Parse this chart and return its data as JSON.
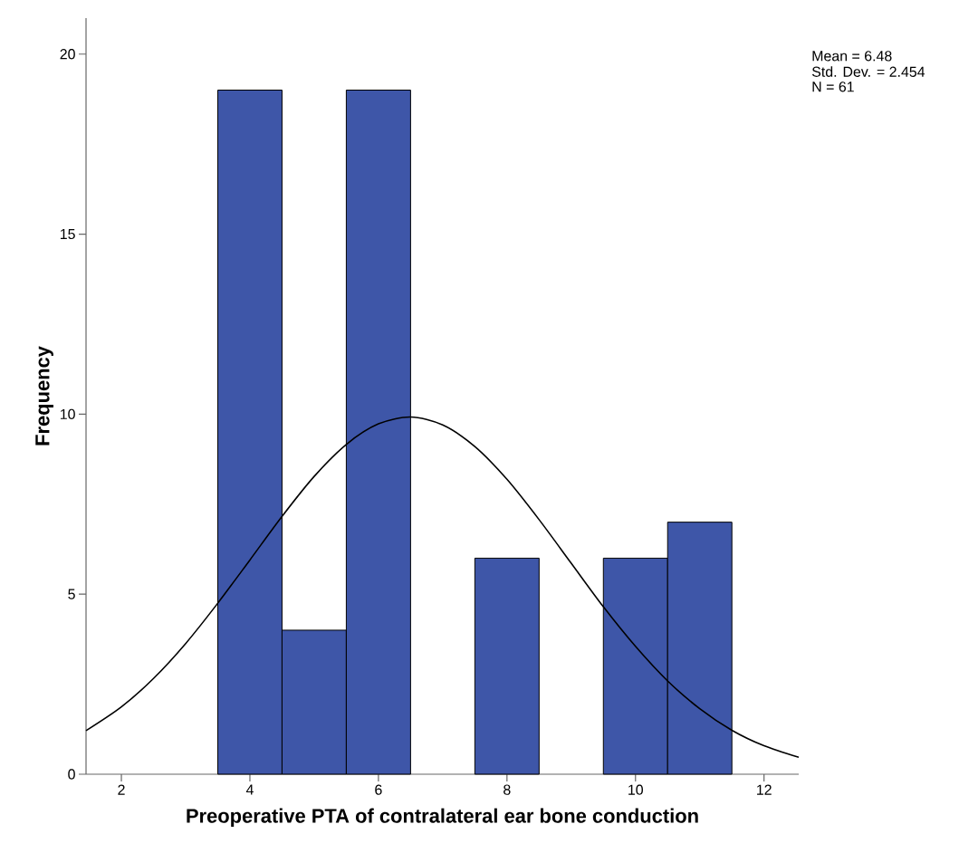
{
  "chart_data": {
    "type": "histogram",
    "xlabel": "Preoperative PTA of contralateral ear bone conduction",
    "ylabel": "Frequency",
    "bins": [
      3.5,
      4.5,
      5.5,
      6.5,
      7.5,
      8.5,
      9.5,
      10.5,
      11.5
    ],
    "values": [
      19,
      4,
      19,
      0,
      6,
      0,
      6,
      7
    ],
    "color": "#3e56a8",
    "series": [
      {
        "type": "line",
        "color": "#000000",
        "x": [
          1.45,
          2,
          2.5,
          3,
          3.5,
          4,
          4.5,
          5,
          5.5,
          6,
          6.5,
          7,
          7.5,
          8,
          8.5,
          9,
          9.5,
          10,
          10.5,
          11,
          11.5,
          12,
          12.54
        ],
        "values": [
          1.21,
          1.87,
          2.66,
          3.63,
          4.75,
          5.95,
          7.16,
          8.27,
          9.16,
          9.73,
          9.92,
          9.7,
          9.1,
          8.19,
          7.07,
          5.86,
          4.65,
          3.55,
          2.59,
          1.82,
          1.22,
          0.79,
          0.47
        ]
      }
    ],
    "xlim": [
      1.45,
      12.54
    ],
    "ylim": [
      0,
      21
    ],
    "xticks": [
      2,
      4,
      6,
      8,
      10,
      12
    ],
    "yticks": [
      0,
      5,
      10,
      15,
      20
    ],
    "annotations": [
      "Mean = 6.48",
      "Std. Dev. = 2.454",
      "N = 61"
    ]
  }
}
